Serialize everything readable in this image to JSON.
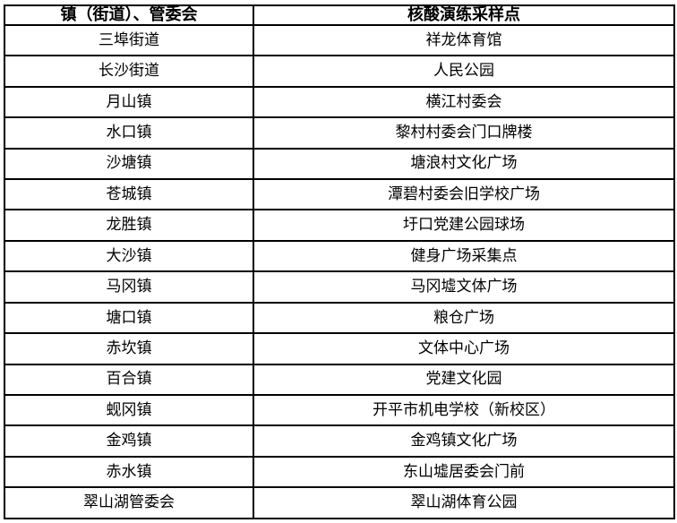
{
  "table": {
    "columns": [
      "镇（街道）、管委会",
      "核酸演练采样点"
    ],
    "rows": [
      [
        "三埠街道",
        "祥龙体育馆"
      ],
      [
        "长沙街道",
        "人民公园"
      ],
      [
        "月山镇",
        "横江村委会"
      ],
      [
        "水口镇",
        "黎村村委会门口牌楼"
      ],
      [
        "沙塘镇",
        "塘浪村文化广场"
      ],
      [
        "苍城镇",
        "潭碧村委会旧学校广场"
      ],
      [
        "龙胜镇",
        "圩口党建公园球场"
      ],
      [
        "大沙镇",
        "健身广场采集点"
      ],
      [
        "马冈镇",
        "马冈墟文体广场"
      ],
      [
        "塘口镇",
        "粮仓广场"
      ],
      [
        "赤坎镇",
        "文体中心广场"
      ],
      [
        "百合镇",
        "党建文化园"
      ],
      [
        "蚬冈镇",
        "开平市机电学校（新校区）"
      ],
      [
        "金鸡镇",
        "金鸡镇文化广场"
      ],
      [
        "赤水镇",
        "东山墟居委会门前"
      ],
      [
        "翠山湖管委会",
        "翠山湖体育公园"
      ]
    ]
  },
  "colors": {
    "border": "#000000",
    "text": "#000000",
    "background": "#ffffff"
  }
}
